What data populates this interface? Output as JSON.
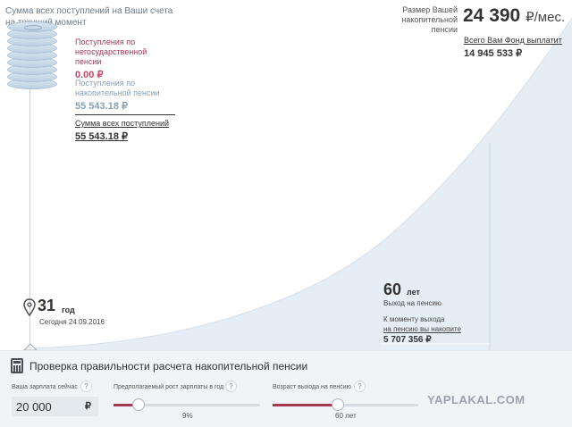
{
  "header": {
    "caption": "Сумма всех поступлений на Ваши счета на текущий момент"
  },
  "contributions": {
    "npf_label": "Поступления по негосударственной пенсии",
    "npf_value": "0.00 ₽",
    "funded_label": "Поступления по накопительной пенсии",
    "funded_value": "55 543.18 ₽",
    "total_label": "Сумма всех поступлений",
    "total_value": "55 543.18 ₽"
  },
  "pension": {
    "caption": "Размер Вашей накопительной пенсии",
    "monthly_amount": "24 390",
    "monthly_unit": "₽/мес.",
    "fund_label": "Всего Вам Фонд выплатит",
    "fund_value": "14 945 533 ₽"
  },
  "current": {
    "age": "31",
    "age_unit": "год",
    "today": "Сегодня 24.09.2016"
  },
  "retirement": {
    "age": "60",
    "age_unit": "лет",
    "caption": "Выход на пенсию",
    "savings_label_1": "К моменту выхода",
    "savings_label_2": "на пенсию вы накопите",
    "savings_value": "5 707 356 ₽"
  },
  "calculator": {
    "title": "Проверка правильности расчета накопительной пенсии",
    "salary_label": "Ваша зарплата сейчас",
    "salary_value": "20 000",
    "salary_currency": "₽",
    "growth_label": "Предполагаемый рост зарплаты в год",
    "growth_value": "9%",
    "growth_fraction": 0.17,
    "retire_label": "Возраст выхода на пенсию",
    "retire_value": "60 лет",
    "retire_fraction": 0.45,
    "help_glyph": "?"
  },
  "watermark": "YAPLAKAL.COM",
  "colors": {
    "accent": "#a63a55",
    "curve_fill": "#e6eef5",
    "text_muted": "#8aa1b5"
  }
}
